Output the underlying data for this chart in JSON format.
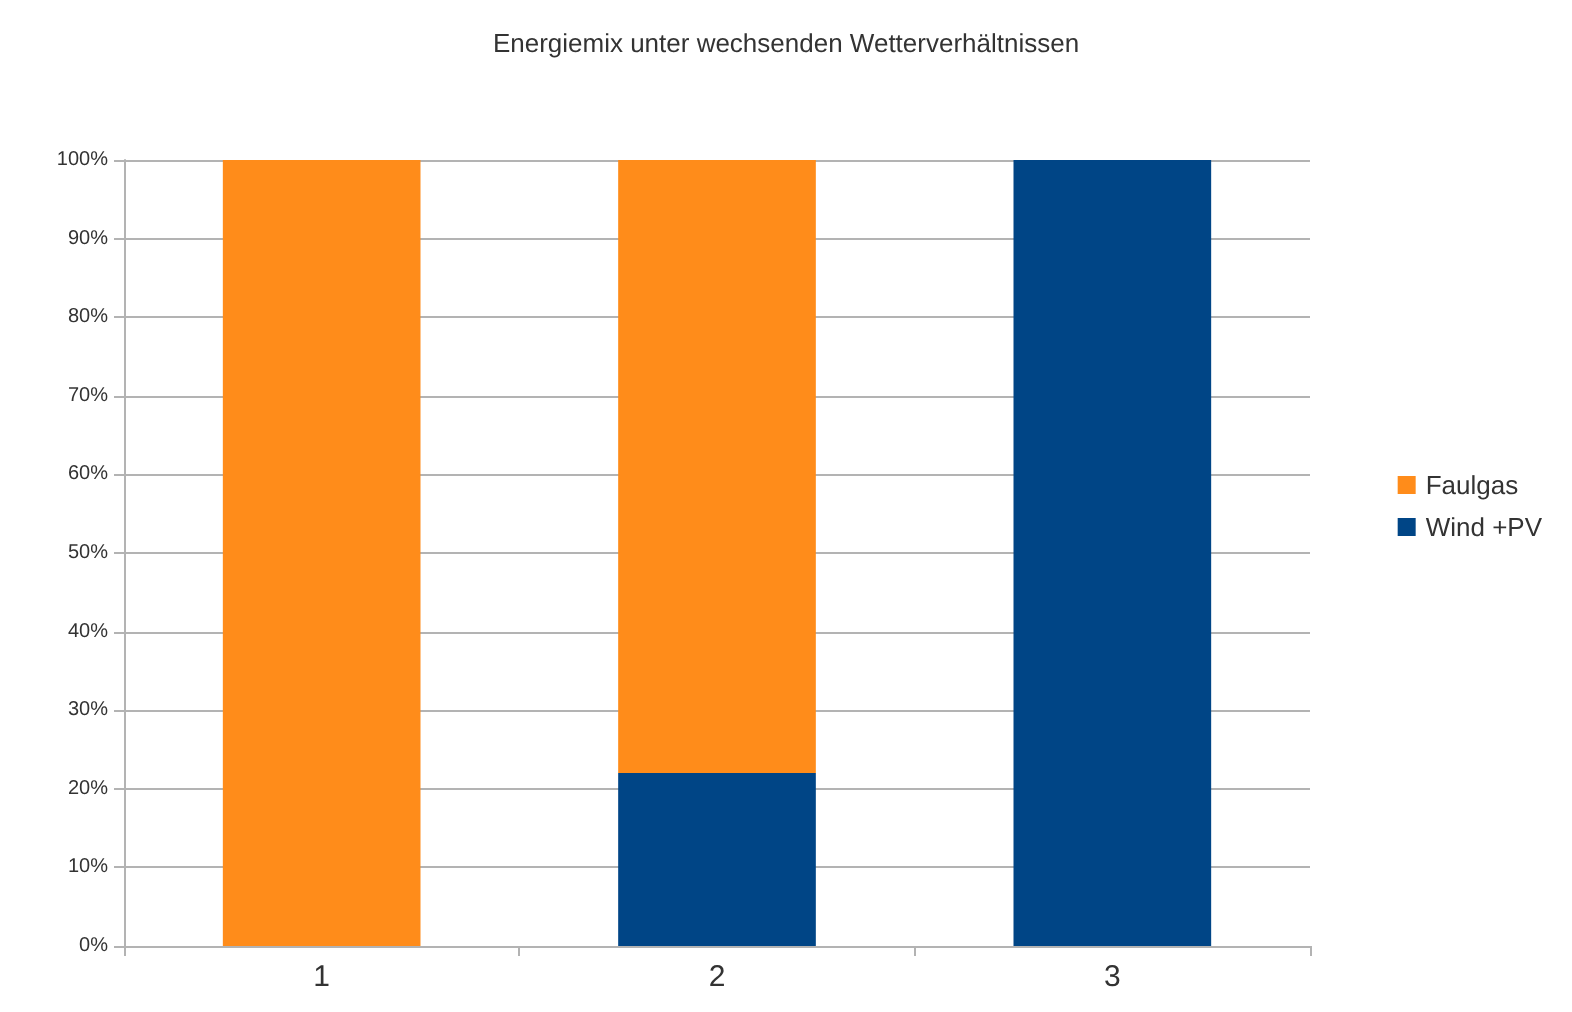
{
  "chart_data": {
    "type": "bar",
    "title": "Energiemix unter wechsenden Wetterverhältnissen",
    "categories": [
      "1",
      "2",
      "3"
    ],
    "stacked": true,
    "series": [
      {
        "name": "Wind +PV",
        "color": "#004586",
        "values": [
          0,
          22,
          100
        ]
      },
      {
        "name": "Faulgas",
        "color": "#ff8c1a",
        "values": [
          100,
          78,
          0
        ]
      }
    ],
    "ylim": [
      0,
      100
    ],
    "yticks": [
      {
        "value": 0,
        "label": "0%"
      },
      {
        "value": 10,
        "label": "10%"
      },
      {
        "value": 20,
        "label": "20%"
      },
      {
        "value": 30,
        "label": "30%"
      },
      {
        "value": 40,
        "label": "40%"
      },
      {
        "value": 50,
        "label": "50%"
      },
      {
        "value": 60,
        "label": "60%"
      },
      {
        "value": 70,
        "label": "70%"
      },
      {
        "value": 80,
        "label": "80%"
      },
      {
        "value": 90,
        "label": "90%"
      },
      {
        "value": 100,
        "label": "100%"
      }
    ],
    "grid": "y",
    "legend": "right"
  }
}
